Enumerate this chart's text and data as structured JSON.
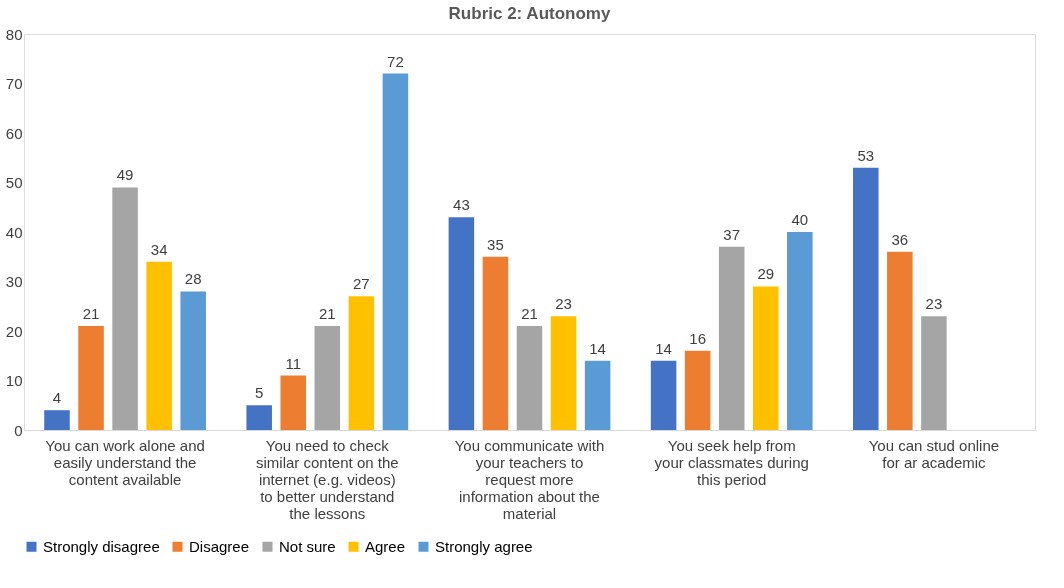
{
  "chart_data": {
    "type": "bar",
    "title": "Rubric 2: Autonomy",
    "categories": [
      "You can work alone and easily understand the content available",
      "You need to check similar content on the internet (e.g. videos) to better understand the lessons",
      "You communicate with your teachers to request more information about the material",
      "You seek help from your classmates during this period",
      "You can stud online for ar academic"
    ],
    "series": [
      {
        "name": "Strongly disagree",
        "color": "#4472c4",
        "values": [
          4,
          5,
          43,
          14,
          53
        ]
      },
      {
        "name": "Disagree",
        "color": "#ed7d31",
        "values": [
          21,
          11,
          35,
          16,
          36
        ]
      },
      {
        "name": "Not sure",
        "color": "#a5a5a5",
        "values": [
          49,
          21,
          21,
          37,
          23
        ]
      },
      {
        "name": "Agree",
        "color": "#ffc000",
        "values": [
          34,
          27,
          23,
          29,
          null
        ]
      },
      {
        "name": "Strongly agree",
        "color": "#5b9bd5",
        "values": [
          28,
          72,
          14,
          40,
          null
        ]
      }
    ],
    "ylim": [
      0,
      80
    ],
    "yticks": [
      0,
      10,
      20,
      30,
      40,
      50,
      60,
      70,
      80
    ],
    "grid": false,
    "legend": "bottom",
    "data_labels": true
  }
}
